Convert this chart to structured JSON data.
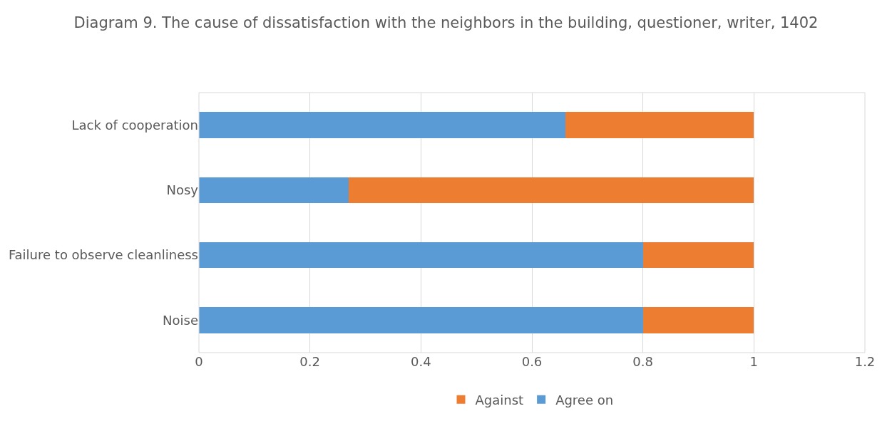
{
  "chart_data": {
    "type": "bar",
    "orientation": "horizontal",
    "stacked": true,
    "title": "Diagram 9. The cause of dissatisfaction with the neighbors in the building, questioner, writer, 1402",
    "categories": [
      "Lack of cooperation",
      "Nosy",
      "Failure to observe cleanliness",
      "Noise"
    ],
    "series": [
      {
        "name": "Agree on",
        "color": "#5b9bd5",
        "values": [
          0.66,
          0.27,
          0.8,
          0.8
        ]
      },
      {
        "name": "Against",
        "color": "#ed7d31",
        "values": [
          0.34,
          0.73,
          0.2,
          0.2
        ]
      }
    ],
    "xlim": [
      0,
      1.2
    ],
    "xticks": [
      0,
      0.2,
      0.4,
      0.6,
      0.8,
      1,
      1.2
    ],
    "grid": "x",
    "legend": "bottom"
  }
}
